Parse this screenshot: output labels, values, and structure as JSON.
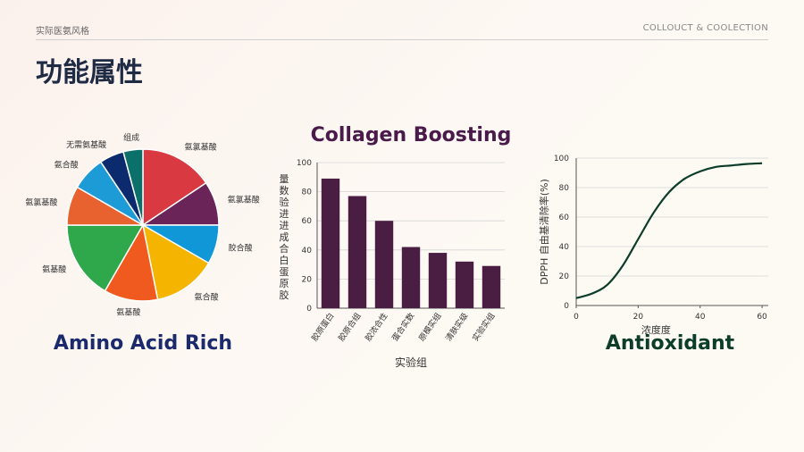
{
  "header": {
    "left_text": "实际医氨风格",
    "right_text": "COLLOUCT & COOLECTION"
  },
  "page_title": "功能属性",
  "chart_data": [
    {
      "type": "pie",
      "title": "Amino Acid Rich",
      "slices": [
        {
          "label": "氨氯基酸",
          "value": 15,
          "color": "#d93a42"
        },
        {
          "label": "氨氯基酸",
          "value": 9,
          "color": "#6a2458"
        },
        {
          "label": "胶合酸",
          "value": 8,
          "color": "#0f97d8"
        },
        {
          "label": "氨合酸",
          "value": 13,
          "color": "#f4b400"
        },
        {
          "label": "氨基酸",
          "value": 11,
          "color": "#f05a1f"
        },
        {
          "label": "氨基酸",
          "value": 16,
          "color": "#2ea84a"
        },
        {
          "label": "氨氯基酸",
          "value": 8,
          "color": "#e8622f"
        },
        {
          "label": "氨合酸",
          "value": 7,
          "color": "#1d9bd7"
        },
        {
          "label": "无需氨基酸",
          "value": 5,
          "color": "#0c2b6e"
        },
        {
          "label": "组成",
          "value": 4,
          "color": "#0b6f6a"
        }
      ]
    },
    {
      "type": "bar",
      "title": "Collagen Boosting",
      "xlabel": "实验组",
      "ylabel": "量数验进进成合白蛋原胶",
      "categories": [
        "胶原蛋白",
        "胶原合组",
        "胶浓合性",
        "蛋合实数",
        "原模实组",
        "清肤实级",
        "实验实组"
      ],
      "values": [
        89,
        77,
        60,
        42,
        38,
        32,
        29
      ],
      "ylim": [
        0,
        100
      ],
      "yticks": [
        0,
        20,
        40,
        60,
        80,
        100
      ],
      "color": "#4a1d42"
    },
    {
      "type": "line",
      "title": "Antioxidant",
      "xlabel": "浓度度",
      "ylabel": "DPPH 自由基清除率(%)",
      "xlim": [
        0,
        62
      ],
      "ylim": [
        0,
        100
      ],
      "xticks": [
        0,
        20,
        40,
        60
      ],
      "yticks": [
        0,
        20,
        40,
        60,
        80,
        100
      ],
      "x": [
        0,
        5,
        10,
        15,
        20,
        25,
        30,
        35,
        40,
        45,
        50,
        55,
        60
      ],
      "y": [
        5,
        8,
        14,
        27,
        45,
        63,
        77,
        86,
        91,
        94,
        95,
        96,
        96.5
      ],
      "color": "#0c3d2a"
    }
  ]
}
